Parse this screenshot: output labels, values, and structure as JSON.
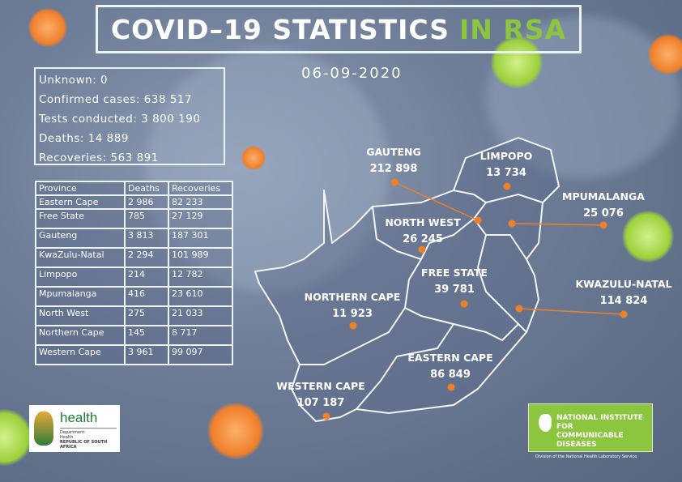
{
  "title": {
    "main": "COVID–19 STATISTICS",
    "highlight": "IN RSA"
  },
  "date": "06-09-2020",
  "summary": {
    "unknown": "Unknown: 0",
    "confirmed": "Confirmed cases: 638 517",
    "tests": "Tests conducted: 3 800 190",
    "deaths": "Deaths: 14 889",
    "recoveries": "Recoveries: 563 891"
  },
  "table": {
    "headers": [
      "Province",
      "Deaths",
      "Recoveries"
    ],
    "rows": [
      [
        "Eastern Cape",
        "2 986",
        "82 233"
      ],
      [
        "Free State",
        "785",
        "27 129"
      ],
      [
        "Gauteng",
        "3 813",
        "187 301"
      ],
      [
        "KwaZulu-Natal",
        "2 294",
        "101 989"
      ],
      [
        "Limpopo",
        "214",
        "12 782"
      ],
      [
        "Mpumalanga",
        "416",
        "23 610"
      ],
      [
        "North West",
        "275",
        "21 033"
      ],
      [
        "Northern Cape",
        "145",
        "8 717"
      ],
      [
        "Western Cape",
        "3 961",
        "99 097"
      ]
    ]
  },
  "map": {
    "provinces": [
      {
        "name": "GAUTENG",
        "cases": "212 898"
      },
      {
        "name": "LIMPOPO",
        "cases": "13 734"
      },
      {
        "name": "MPUMALANGA",
        "cases": "25 076"
      },
      {
        "name": "NORTH WEST",
        "cases": "26 245"
      },
      {
        "name": "FREE STATE",
        "cases": "39 781"
      },
      {
        "name": "KWAZULU-NATAL",
        "cases": "114 824"
      },
      {
        "name": "NORTHERN CAPE",
        "cases": "11 923"
      },
      {
        "name": "EASTERN CAPE",
        "cases": "86 849"
      },
      {
        "name": "WESTERN CAPE",
        "cases": "107 187"
      }
    ]
  },
  "logos": {
    "health": {
      "word": "health",
      "line1": "Department:",
      "line2": "Health",
      "line3": "REPUBLIC OF SOUTH AFRICA"
    },
    "nicd": {
      "line1": "NATIONAL INSTITUTE FOR",
      "line2": "COMMUNICABLE DISEASES",
      "line3": "Division of the National Health Laboratory Service"
    }
  },
  "colors": {
    "accent": "#8cc63f",
    "marker": "#f07f2a",
    "virus_orange": "#f58a2a",
    "virus_green": "#9bd13c"
  }
}
